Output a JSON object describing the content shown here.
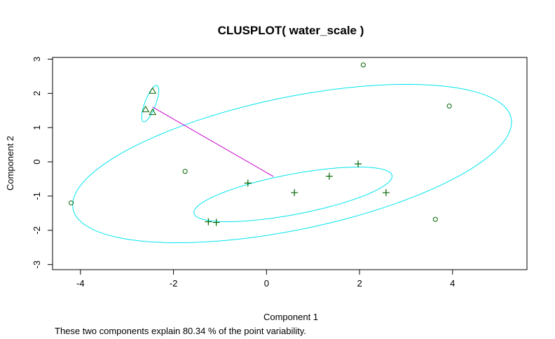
{
  "chart_data": {
    "type": "scatter",
    "title": "CLUSPLOT( water_scale )",
    "xlabel": "Component 1",
    "ylabel": "Component 2",
    "subtitle": "These two components explain 80.34 % of the point variability.",
    "xlim": [
      -4.6,
      5.6
    ],
    "ylim": [
      -3.15,
      3.05
    ],
    "xticks": [
      -4,
      -2,
      0,
      2,
      4
    ],
    "yticks": [
      -3,
      -2,
      -1,
      0,
      1,
      2,
      3
    ],
    "grid": false,
    "colors": {
      "points": "#006400",
      "ellipse": "#00e5ee",
      "link": "#cc00cc",
      "axis": "#000000"
    },
    "series": [
      {
        "marker": "circle",
        "points": [
          [
            2.08,
            2.83
          ],
          [
            3.93,
            1.63
          ],
          [
            -1.75,
            -0.28
          ],
          [
            -4.2,
            -1.2
          ],
          [
            3.63,
            -1.68
          ]
        ]
      },
      {
        "marker": "triangle",
        "points": [
          [
            -2.45,
            2.07
          ],
          [
            -2.6,
            1.53
          ],
          [
            -2.45,
            1.45
          ]
        ]
      },
      {
        "marker": "plus",
        "points": [
          [
            -0.4,
            -0.62
          ],
          [
            0.6,
            -0.9
          ],
          [
            1.35,
            -0.42
          ],
          [
            1.97,
            -0.06
          ],
          [
            2.57,
            -0.9
          ],
          [
            -1.25,
            -1.75
          ],
          [
            -1.08,
            -1.77
          ]
        ]
      }
    ],
    "ellipses": [
      {
        "cx": 0.55,
        "cy": -0.05,
        "rx": 4.9,
        "ry": 1.9,
        "angle_deg": 17
      },
      {
        "cx": -2.5,
        "cy": 1.7,
        "rx": 0.55,
        "ry": 0.12,
        "angle_deg": 75
      },
      {
        "cx": 0.57,
        "cy": -0.95,
        "rx": 2.2,
        "ry": 0.58,
        "angle_deg": 15
      }
    ],
    "links": [
      {
        "from": [
          -2.45,
          1.6
        ],
        "to": [
          0.15,
          -0.43
        ]
      }
    ]
  }
}
